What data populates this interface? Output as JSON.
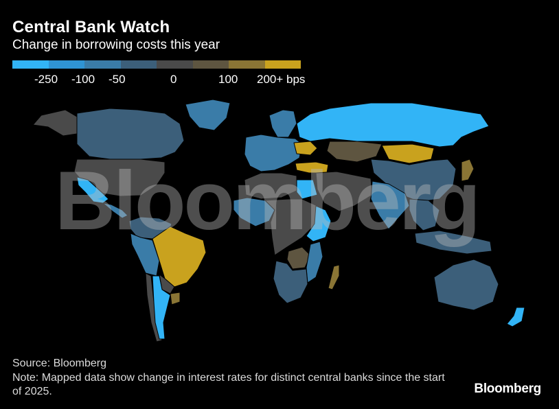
{
  "title": "Central Bank Watch",
  "subtitle": "Change in borrowing costs this year",
  "legend": {
    "swatches": [
      "#32b4f6",
      "#2f94d4",
      "#3a7ca8",
      "#3c5f7a",
      "#4a4a4a",
      "#5e5540",
      "#8a7535",
      "#c9a21e"
    ],
    "labels": [
      "-250",
      "-100",
      "-50",
      "0",
      "100",
      "200+ bps"
    ]
  },
  "regions": {
    "north_america": "#4a4a4a",
    "mexico": "#32b4f6",
    "central_america": "#3a7ca8",
    "greenland": "#3a7ca8",
    "alaska": "#4a4a4a",
    "canada": "#3c5f7a",
    "colombia_venezuela": "#3c5f7a",
    "peru_bolivia": "#3a7ca8",
    "brazil": "#c9a21e",
    "paraguay": "#4a4a4a",
    "uruguay": "#8a7535",
    "chile": "#4a4a4a",
    "argentina": "#32b4f6",
    "europe_west": "#3a7ca8",
    "scandinavia": "#3a7ca8",
    "ukraine": "#c9a21e",
    "turkey": "#c9a21e",
    "russia": "#32b4f6",
    "kazakhstan": "#5e5540",
    "mongolia": "#c9a21e",
    "china": "#3c5f7a",
    "japan": "#8a7535",
    "india": "#3a7ca8",
    "middle_east": "#4a4a4a",
    "egypt": "#32b4f6",
    "north_africa": "#4a4a4a",
    "west_africa": "#3a7ca8",
    "central_africa": "#4a4a4a",
    "east_africa": "#32b4f6",
    "zambia": "#5e5540",
    "mozambique": "#3a7ca8",
    "south_africa": "#3c5f7a",
    "madagascar": "#8a7535",
    "southeast_asia": "#3c5f7a",
    "indonesia": "#3c5f7a",
    "australia": "#3c5f7a",
    "new_zealand": "#32b4f6"
  },
  "watermark": "Bloomberg",
  "source": "Source: Bloomberg",
  "note": "Note: Mapped data show change in interest rates for distinct central banks since the start of 2025.",
  "brand": "Bloomberg"
}
